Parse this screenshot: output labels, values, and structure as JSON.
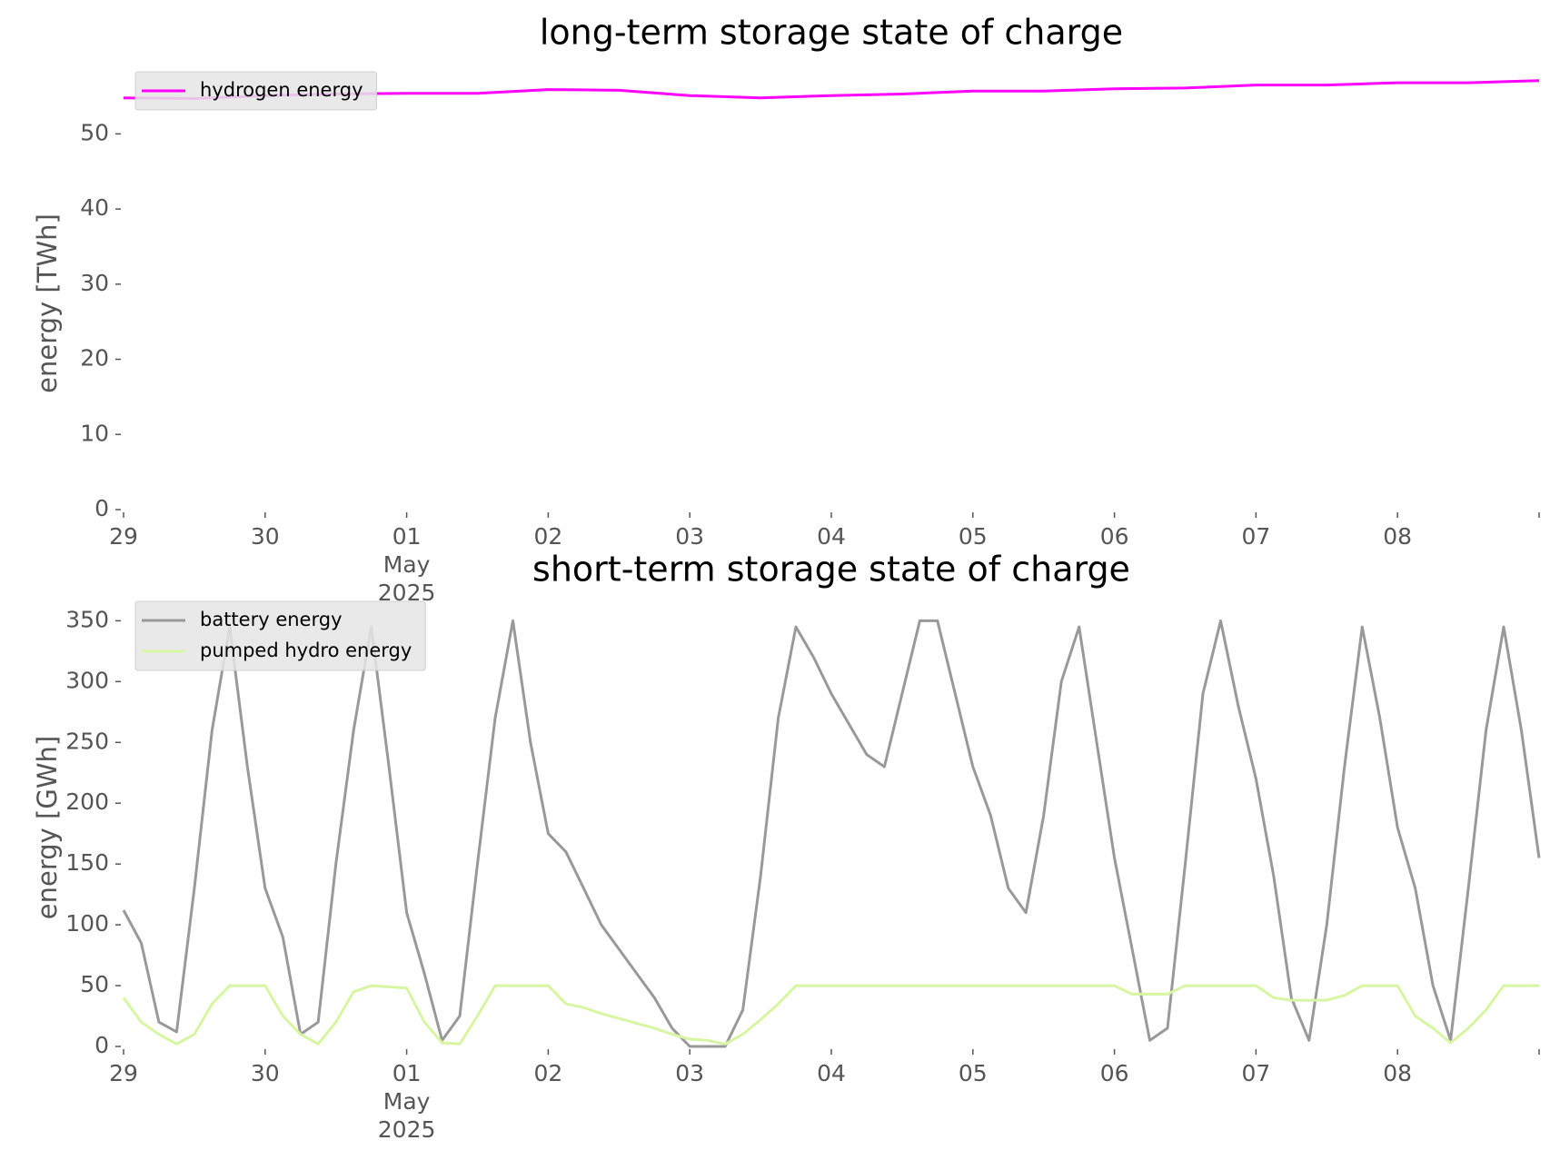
{
  "chart_data": [
    {
      "type": "line",
      "title": "long-term storage state of charge",
      "ylabel": "energy [TWh]",
      "x": [
        "2025-04-29 00:00",
        "2025-04-29 12:00",
        "2025-04-30 00:00",
        "2025-04-30 12:00",
        "2025-05-01 00:00",
        "2025-05-01 12:00",
        "2025-05-02 00:00",
        "2025-05-02 12:00",
        "2025-05-03 00:00",
        "2025-05-03 12:00",
        "2025-05-04 00:00",
        "2025-05-04 12:00",
        "2025-05-05 00:00",
        "2025-05-05 12:00",
        "2025-05-06 00:00",
        "2025-05-06 12:00",
        "2025-05-07 00:00",
        "2025-05-07 12:00",
        "2025-05-08 00:00",
        "2025-05-08 12:00",
        "2025-05-09 00:00"
      ],
      "series": [
        {
          "name": "hydrogen energy",
          "color": "#ff00ff",
          "values": [
            54.8,
            54.7,
            55.1,
            55.3,
            55.4,
            55.4,
            55.9,
            55.8,
            55.1,
            54.8,
            55.1,
            55.3,
            55.7,
            55.7,
            56.0,
            56.1,
            56.5,
            56.5,
            56.8,
            56.8,
            57.1
          ]
        }
      ],
      "xlim": [
        "2025-04-29 00:00",
        "2025-05-09 00:00"
      ],
      "xticks": [
        {
          "value": "2025-04-29 00:00",
          "label": "29"
        },
        {
          "value": "2025-04-30 00:00",
          "label": "30"
        },
        {
          "value": "2025-05-01 00:00",
          "label": "01\nMay\n2025"
        },
        {
          "value": "2025-05-02 00:00",
          "label": "02"
        },
        {
          "value": "2025-05-03 00:00",
          "label": "03"
        },
        {
          "value": "2025-05-04 00:00",
          "label": "04"
        },
        {
          "value": "2025-05-05 00:00",
          "label": "05"
        },
        {
          "value": "2025-05-06 00:00",
          "label": "06"
        },
        {
          "value": "2025-05-07 00:00",
          "label": "07"
        },
        {
          "value": "2025-05-08 00:00",
          "label": "08"
        },
        {
          "value": "2025-05-09 00:00",
          "label": null
        }
      ],
      "ylim": [
        0,
        57.3
      ],
      "yticks": [
        0,
        10,
        20,
        30,
        40,
        50
      ],
      "legend": "upper left"
    },
    {
      "type": "line",
      "title": "short-term storage state of charge",
      "ylabel": "energy [GWh]",
      "x": [
        "2025-04-29 00:00",
        "2025-04-29 03:00",
        "2025-04-29 06:00",
        "2025-04-29 09:00",
        "2025-04-29 12:00",
        "2025-04-29 15:00",
        "2025-04-29 18:00",
        "2025-04-29 21:00",
        "2025-04-30 00:00",
        "2025-04-30 03:00",
        "2025-04-30 06:00",
        "2025-04-30 09:00",
        "2025-04-30 12:00",
        "2025-04-30 15:00",
        "2025-04-30 18:00",
        "2025-04-30 21:00",
        "2025-05-01 00:00",
        "2025-05-01 03:00",
        "2025-05-01 06:00",
        "2025-05-01 09:00",
        "2025-05-01 12:00",
        "2025-05-01 15:00",
        "2025-05-01 18:00",
        "2025-05-01 21:00",
        "2025-05-02 00:00",
        "2025-05-02 03:00",
        "2025-05-02 06:00",
        "2025-05-02 09:00",
        "2025-05-02 12:00",
        "2025-05-02 15:00",
        "2025-05-02 18:00",
        "2025-05-02 21:00",
        "2025-05-03 00:00",
        "2025-05-03 03:00",
        "2025-05-03 06:00",
        "2025-05-03 09:00",
        "2025-05-03 12:00",
        "2025-05-03 15:00",
        "2025-05-03 18:00",
        "2025-05-03 21:00",
        "2025-05-04 00:00",
        "2025-05-04 03:00",
        "2025-05-04 06:00",
        "2025-05-04 09:00",
        "2025-05-04 12:00",
        "2025-05-04 15:00",
        "2025-05-04 18:00",
        "2025-05-04 21:00",
        "2025-05-05 00:00",
        "2025-05-05 03:00",
        "2025-05-05 06:00",
        "2025-05-05 09:00",
        "2025-05-05 12:00",
        "2025-05-05 15:00",
        "2025-05-05 18:00",
        "2025-05-05 21:00",
        "2025-05-06 00:00",
        "2025-05-06 03:00",
        "2025-05-06 06:00",
        "2025-05-06 09:00",
        "2025-05-06 12:00",
        "2025-05-06 15:00",
        "2025-05-06 18:00",
        "2025-05-06 21:00",
        "2025-05-07 00:00",
        "2025-05-07 03:00",
        "2025-05-07 06:00",
        "2025-05-07 09:00",
        "2025-05-07 12:00",
        "2025-05-07 15:00",
        "2025-05-07 18:00",
        "2025-05-07 21:00",
        "2025-05-08 00:00",
        "2025-05-08 03:00",
        "2025-05-08 06:00",
        "2025-05-08 09:00",
        "2025-05-08 12:00",
        "2025-05-08 15:00",
        "2025-05-08 18:00",
        "2025-05-08 21:00",
        "2025-05-09 00:00"
      ],
      "series": [
        {
          "name": "battery energy",
          "color": "#999999",
          "values": [
            112,
            85,
            20,
            12,
            130,
            260,
            345,
            230,
            130,
            90,
            10,
            20,
            150,
            260,
            345,
            230,
            110,
            60,
            5,
            25,
            150,
            270,
            350,
            250,
            175,
            160,
            130,
            100,
            80,
            60,
            40,
            15,
            0,
            0,
            0,
            30,
            140,
            270,
            345,
            320,
            290,
            265,
            240,
            230,
            290,
            350,
            350,
            290,
            230,
            190,
            130,
            110,
            190,
            300,
            345,
            250,
            155,
            80,
            5,
            15,
            150,
            290,
            350,
            280,
            220,
            140,
            40,
            5,
            100,
            230,
            345,
            270,
            180,
            130,
            50,
            5,
            130,
            260,
            345,
            260,
            155
          ]
        },
        {
          "name": "pumped hydro energy",
          "color": "#d8f5a2",
          "values": [
            40,
            20,
            10,
            2,
            10,
            35,
            50,
            50,
            50,
            25,
            10,
            2,
            20,
            45,
            50,
            49,
            48,
            20,
            3,
            2,
            25,
            50,
            50,
            50,
            50,
            35,
            32,
            27,
            23,
            19,
            15,
            10,
            6,
            5,
            2,
            10,
            22,
            35,
            50,
            50,
            50,
            50,
            50,
            50,
            50,
            50,
            50,
            50,
            50,
            50,
            50,
            50,
            50,
            50,
            50,
            50,
            50,
            43,
            43,
            43,
            50,
            50,
            50,
            50,
            50,
            40,
            38,
            38,
            38,
            42,
            50,
            50,
            50,
            25,
            15,
            3,
            15,
            30,
            50,
            50,
            50
          ]
        }
      ],
      "xlim": [
        "2025-04-29 00:00",
        "2025-05-09 00:00"
      ],
      "xticks": [
        {
          "value": "2025-04-29 00:00",
          "label": "29"
        },
        {
          "value": "2025-04-30 00:00",
          "label": "30"
        },
        {
          "value": "2025-05-01 00:00",
          "label": "01\nMay\n2025"
        },
        {
          "value": "2025-05-02 00:00",
          "label": "02"
        },
        {
          "value": "2025-05-03 00:00",
          "label": "03"
        },
        {
          "value": "2025-05-04 00:00",
          "label": "04"
        },
        {
          "value": "2025-05-05 00:00",
          "label": "05"
        },
        {
          "value": "2025-05-06 00:00",
          "label": "06"
        },
        {
          "value": "2025-05-07 00:00",
          "label": "07"
        },
        {
          "value": "2025-05-08 00:00",
          "label": "08"
        },
        {
          "value": "2025-05-09 00:00",
          "label": null
        }
      ],
      "ylim": [
        0,
        360
      ],
      "yticks": [
        0,
        50,
        100,
        150,
        200,
        250,
        300,
        350
      ],
      "legend": "upper left"
    }
  ]
}
